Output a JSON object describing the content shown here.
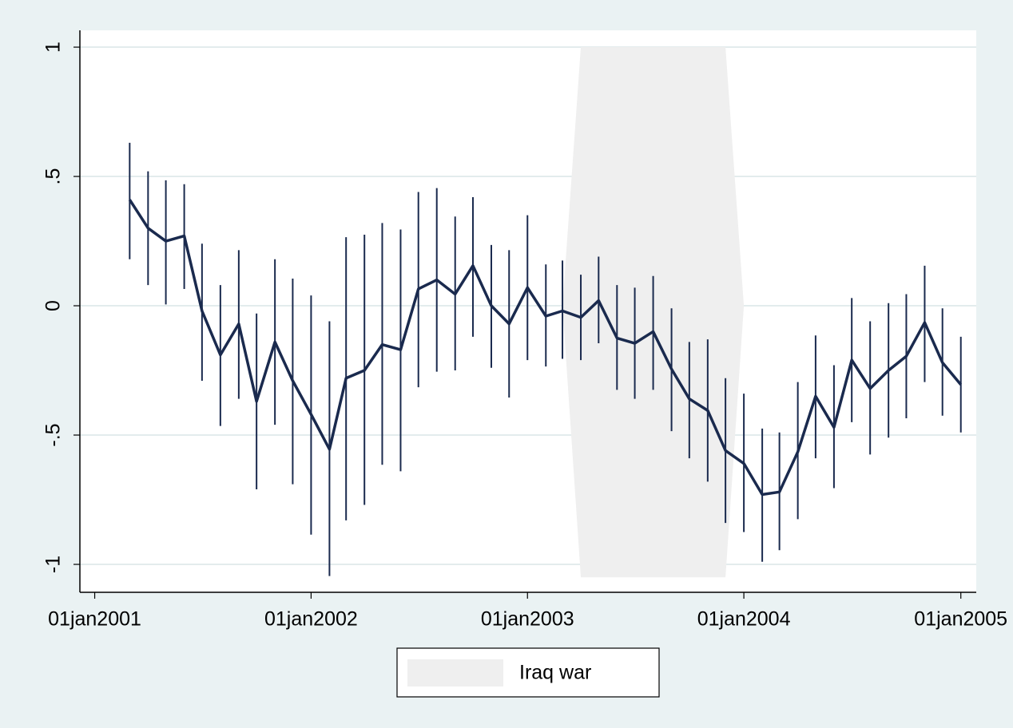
{
  "chart_data": {
    "type": "line",
    "x": [
      "2001-03-01",
      "2001-04-01",
      "2001-05-01",
      "2001-06-01",
      "2001-07-01",
      "2001-08-01",
      "2001-09-01",
      "2001-10-01",
      "2001-11-01",
      "2001-12-01",
      "2002-01-01",
      "2002-02-01",
      "2002-03-01",
      "2002-04-01",
      "2002-05-01",
      "2002-06-01",
      "2002-07-01",
      "2002-08-01",
      "2002-09-01",
      "2002-10-01",
      "2002-11-01",
      "2002-12-01",
      "2003-01-01",
      "2003-02-01",
      "2003-03-01",
      "2003-04-01",
      "2003-05-01",
      "2003-06-01",
      "2003-07-01",
      "2003-08-01",
      "2003-09-01",
      "2003-10-01",
      "2003-11-01",
      "2003-12-01",
      "2004-01-01",
      "2004-02-01",
      "2004-03-01",
      "2004-04-01",
      "2004-05-01",
      "2004-06-01",
      "2004-07-01",
      "2004-08-01",
      "2004-09-01",
      "2004-10-01",
      "2004-11-01",
      "2004-12-01",
      "2005-01-01"
    ],
    "series": [
      {
        "color": "#1a2a4e",
        "values": [
          0.41,
          0.3,
          0.25,
          0.27,
          -0.02,
          -0.19,
          -0.07,
          -0.37,
          -0.14,
          -0.29,
          -0.42,
          -0.555,
          -0.28,
          -0.25,
          -0.15,
          -0.17,
          0.065,
          0.1,
          0.045,
          0.155,
          0,
          -0.07,
          0.07,
          -0.04,
          -0.02,
          -0.045,
          0.02,
          -0.125,
          -0.145,
          -0.1,
          -0.245,
          -0.36,
          -0.405,
          -0.56,
          -0.61,
          -0.73,
          -0.72,
          -0.565,
          -0.35,
          -0.47,
          -0.21,
          -0.32,
          -0.25,
          -0.195,
          -0.065,
          -0.22,
          -0.305
        ],
        "ci_upper": [
          0.63,
          0.52,
          0.485,
          0.47,
          0.24,
          0.08,
          0.215,
          -0.03,
          0.18,
          0.105,
          0.04,
          -0.06,
          0.265,
          0.275,
          0.32,
          0.295,
          0.44,
          0.455,
          0.345,
          0.42,
          0.235,
          0.215,
          0.35,
          0.16,
          0.175,
          0.12,
          0.19,
          0.08,
          0.07,
          0.115,
          -0.01,
          -0.14,
          -0.13,
          -0.28,
          -0.34,
          -0.475,
          -0.49,
          -0.295,
          -0.115,
          -0.23,
          0.03,
          -0.06,
          0.01,
          0.045,
          0.155,
          -0.01,
          -0.12
        ],
        "ci_lower": [
          0.18,
          0.08,
          0.005,
          0.065,
          -0.29,
          -0.465,
          -0.36,
          -0.71,
          -0.46,
          -0.69,
          -0.885,
          -1.045,
          -0.83,
          -0.77,
          -0.615,
          -0.64,
          -0.315,
          -0.255,
          -0.25,
          -0.12,
          -0.24,
          -0.355,
          -0.21,
          -0.235,
          -0.205,
          -0.21,
          -0.145,
          -0.325,
          -0.36,
          -0.325,
          -0.485,
          -0.59,
          -0.68,
          -0.84,
          -0.875,
          -0.99,
          -0.945,
          -0.825,
          -0.59,
          -0.705,
          -0.45,
          -0.575,
          -0.51,
          -0.435,
          -0.295,
          -0.425,
          -0.49
        ]
      }
    ],
    "shaded": {
      "name": "Iraq war",
      "color": "#efefef",
      "x": [
        "2003-03-01",
        "2003-04-01",
        "2003-05-01",
        "2003-06-01",
        "2003-07-01",
        "2003-08-01",
        "2003-09-01",
        "2003-10-01",
        "2003-11-01",
        "2003-12-01",
        "2004-01-01"
      ],
      "upper": [
        0,
        1,
        1,
        1,
        1,
        1,
        1,
        1,
        1,
        1,
        0
      ],
      "lower": [
        0,
        -1.05,
        -1.05,
        -1.05,
        -1.05,
        -1.05,
        -1.05,
        -1.05,
        -1.05,
        -1.05,
        0
      ]
    },
    "xlim": [
      "2000-12-07",
      "2005-01-27"
    ],
    "xticks": [
      {
        "value": "2001-01-01",
        "label": "01jan2001"
      },
      {
        "value": "2002-01-01",
        "label": "01jan2002"
      },
      {
        "value": "2003-01-01",
        "label": "01jan2003"
      },
      {
        "value": "2004-01-01",
        "label": "01jan2004"
      },
      {
        "value": "2005-01-01",
        "label": "01jan2005"
      }
    ],
    "ylim": [
      -1.108,
      1.065
    ],
    "yticks": [
      -1,
      {
        "value": -0.5,
        "label": "-.5"
      },
      0,
      {
        "value": 0.5,
        "label": ".5"
      },
      1
    ],
    "grid": true
  }
}
